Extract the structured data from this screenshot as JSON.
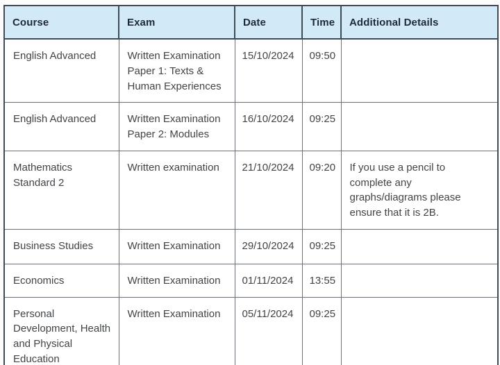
{
  "page": {
    "background": "#fcfcfc"
  },
  "colors": {
    "header_bg": "#d2eaf8",
    "header_text": "#1e2a38",
    "body_text": "#404447",
    "outer_border": "#3f4a54",
    "inner_border": "#6b7177"
  },
  "table": {
    "headers": [
      "Course",
      "Exam",
      "Date",
      "Time",
      "Additional Details"
    ],
    "rows": [
      {
        "course": "English Advanced",
        "exam": "Written Examination Paper 1: Texts & Human Experiences",
        "date": "15/10/2024",
        "time": "09:50",
        "details": ""
      },
      {
        "course": "English Advanced",
        "exam": "Written Examination Paper 2: Modules",
        "date": "16/10/2024",
        "time": "09:25",
        "details": ""
      },
      {
        "course": "Mathematics Standard 2",
        "exam": "Written examination",
        "date": "21/10/2024",
        "time": "09:20",
        "details": "If you use a pencil to complete any graphs/diagrams please ensure that it is 2B."
      },
      {
        "course": "Business Studies",
        "exam": "Written Examination",
        "date": "29/10/2024",
        "time": "09:25",
        "details": ""
      },
      {
        "course": "Economics",
        "exam": "Written Examination",
        "date": "01/11/2024",
        "time": "13:55",
        "details": ""
      },
      {
        "course": "Personal Development, Health and Physical Education",
        "exam": "Written Examination",
        "date": "05/11/2024",
        "time": "09:25",
        "details": ""
      }
    ]
  }
}
